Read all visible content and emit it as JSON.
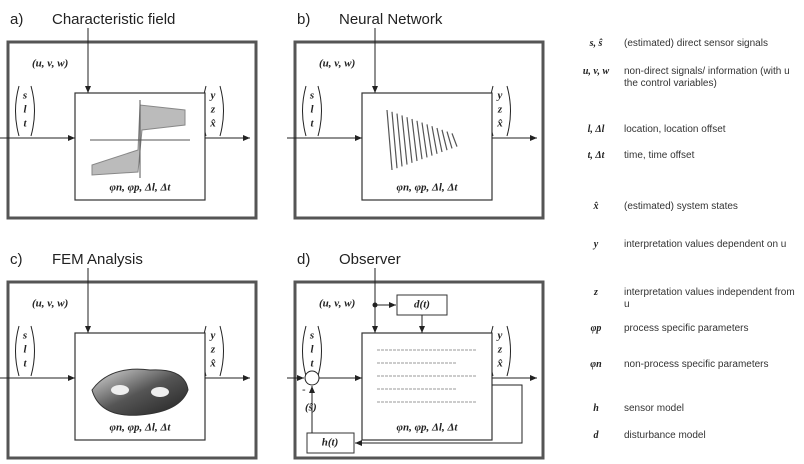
{
  "panels": [
    {
      "letter": "a)",
      "title": "Characteristic field",
      "context": "(u, v, w)",
      "inputs": [
        "s",
        "l",
        "t"
      ],
      "outputs": [
        "y",
        "z",
        "x̂"
      ],
      "params": "φn, φp, Δl, Δt"
    },
    {
      "letter": "b)",
      "title": "Neural Network",
      "context": "(u, v, w)",
      "inputs": [
        "s",
        "l",
        "t"
      ],
      "outputs": [
        "y",
        "z",
        "x̂"
      ],
      "params": "φn, φp, Δl, Δt"
    },
    {
      "letter": "c)",
      "title": "FEM Analysis",
      "context": "(u, v, w)",
      "inputs": [
        "s",
        "l",
        "t"
      ],
      "outputs": [
        "y",
        "z",
        "x̂"
      ],
      "params": "φn, φp, Δl, Δt"
    },
    {
      "letter": "d)",
      "title": "Observer",
      "context": "(u, v, w)",
      "inputs": [
        "s",
        "l",
        "t"
      ],
      "outputs": [
        "y",
        "z",
        "x̂"
      ],
      "params": "φn, φp, Δl, Δt"
    }
  ],
  "observer": {
    "disturbance": "d(t)",
    "sensor": "h(t)",
    "estimate": "(ŝ)",
    "minus": "-"
  },
  "legend": [
    {
      "symbol": "s, ŝ",
      "text": "(estimated) direct sensor signals"
    },
    {
      "symbol": "u, v, w",
      "text": "non-direct signals/ information (with u the control variables)"
    },
    {
      "symbol": "l, Δl",
      "text": "location, location offset"
    },
    {
      "symbol": "t, Δt",
      "text": "time, time offset"
    },
    {
      "symbol": "x̂",
      "text": "(estimated) system states"
    },
    {
      "symbol": "y",
      "text": "interpretation values dependent on u"
    },
    {
      "symbol": "z",
      "text": "interpretation values independent from u"
    },
    {
      "symbol": "φp",
      "text": "process specific parameters"
    },
    {
      "symbol": "φn",
      "text": "non-process specific parameters"
    },
    {
      "symbol": "h",
      "text": "sensor model"
    },
    {
      "symbol": "d",
      "text": "disturbance model"
    }
  ]
}
